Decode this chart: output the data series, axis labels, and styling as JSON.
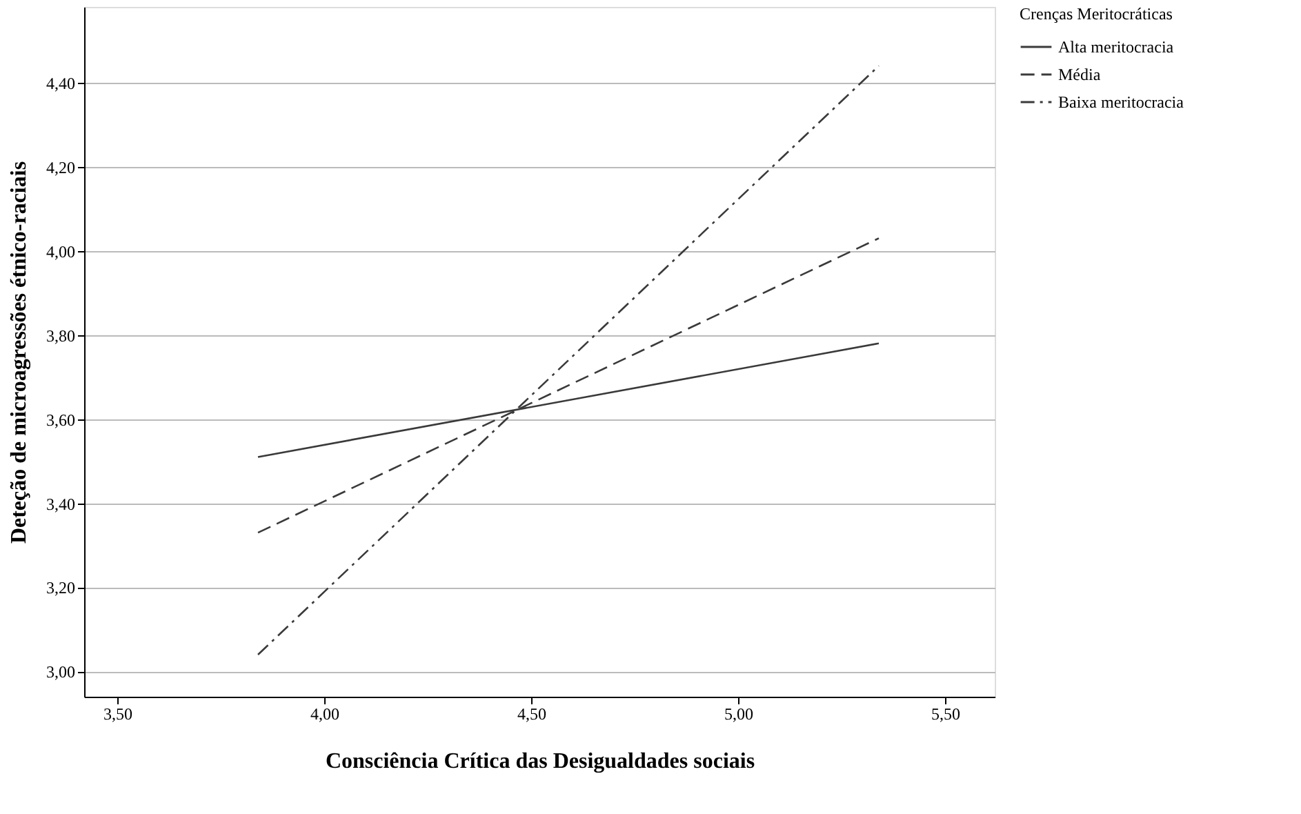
{
  "chart_data": {
    "type": "line",
    "xlabel": "Consciência Crítica das Desigualdades sociais",
    "ylabel": "Deteção de microagressões étnico-raciais",
    "legend_title": "Crenças Meritocráticas",
    "legend": "top right",
    "grid": "y",
    "x": [
      3.84,
      5.34
    ],
    "series": [
      {
        "name": "Alta meritocracia",
        "color": "#3a3a3a",
        "values": [
          3.51,
          3.78
        ],
        "line_style": "solid"
      },
      {
        "name": "Média",
        "color": "#3a3a3a",
        "values": [
          3.33,
          4.03
        ],
        "line_style": "dashed"
      },
      {
        "name": "Baixa meritocracia",
        "color": "#3a3a3a",
        "values": [
          3.04,
          4.44
        ],
        "line_style": "dashdot"
      }
    ],
    "xlim": [
      3.42,
      5.62
    ],
    "xticks": [
      {
        "value": 3.5,
        "label": "3,50"
      },
      {
        "value": 4.0,
        "label": "4,00"
      },
      {
        "value": 4.5,
        "label": "4,50"
      },
      {
        "value": 5.0,
        "label": "5,00"
      },
      {
        "value": 5.5,
        "label": "5,50"
      }
    ],
    "ylim": [
      2.94,
      4.58
    ],
    "yticks": [
      {
        "value": 3.0,
        "label": "3,00"
      },
      {
        "value": 3.2,
        "label": "3,20"
      },
      {
        "value": 3.4,
        "label": "3,40"
      },
      {
        "value": 3.6,
        "label": "3,60"
      },
      {
        "value": 3.8,
        "label": "3,80"
      },
      {
        "value": 4.0,
        "label": "4,00"
      },
      {
        "value": 4.2,
        "label": "4,20"
      },
      {
        "value": 4.4,
        "label": "4,40"
      }
    ]
  }
}
